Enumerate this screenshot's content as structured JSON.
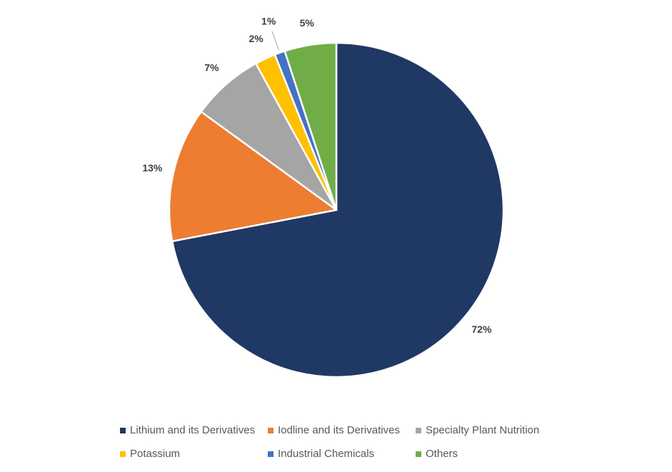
{
  "chart_data": {
    "type": "pie",
    "categories": [
      "Lithium and its Derivatives",
      "Iodline and its Derivatives",
      "Specialty Plant Nutrition",
      "Potassium",
      "Industrial Chemicals",
      "Others"
    ],
    "values": [
      72,
      13,
      7,
      2,
      1,
      5
    ],
    "labels": [
      "72%",
      "13%",
      "7%",
      "2%",
      "1%",
      "5%"
    ],
    "colors": [
      "#203864",
      "#ED7D31",
      "#A5A5A5",
      "#FFC000",
      "#4472C4",
      "#70AD47"
    ],
    "start_angle_deg": 0,
    "direction": "clockwise",
    "legend_position": "bottom",
    "title": ""
  }
}
